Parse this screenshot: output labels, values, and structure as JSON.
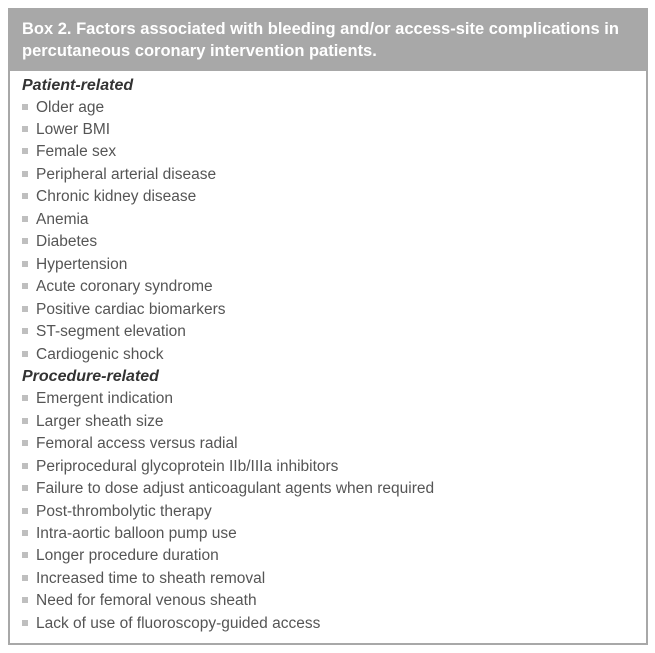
{
  "box": {
    "header": "Box 2. Factors associated with bleeding and/or access-site complications in percutaneous coronary intervention patients.",
    "colors": {
      "header_bg": "#a8a8a8",
      "header_text": "#ffffff",
      "border": "#a8a8a8",
      "body_bg": "#ffffff",
      "section_title_text": "#333333",
      "item_text": "#555555",
      "bullet": "#bfbfbf"
    },
    "typography": {
      "header_fontsize": 16.5,
      "header_fontweight": "bold",
      "section_fontsize": 16,
      "section_fontstyle": "italic",
      "section_fontweight": "bold",
      "item_fontsize": 15.5
    },
    "sections": [
      {
        "title": "Patient-related",
        "items": [
          "Older age",
          "Lower BMI",
          "Female sex",
          "Peripheral arterial disease",
          "Chronic kidney disease",
          "Anemia",
          "Diabetes",
          "Hypertension",
          "Acute coronary syndrome",
          "Positive cardiac biomarkers",
          "ST-segment elevation",
          "Cardiogenic shock"
        ]
      },
      {
        "title": "Procedure-related",
        "items": [
          "Emergent indication",
          "Larger sheath size",
          "Femoral access versus radial",
          "Periprocedural glycoprotein IIb/IIIa inhibitors",
          "Failure to dose adjust anticoagulant agents when required",
          "Post-thrombolytic therapy",
          "Intra-aortic balloon pump use",
          "Longer procedure duration",
          "Increased time to sheath removal",
          "Need for femoral venous sheath",
          "Lack of use of fluoroscopy-guided access"
        ]
      }
    ]
  }
}
